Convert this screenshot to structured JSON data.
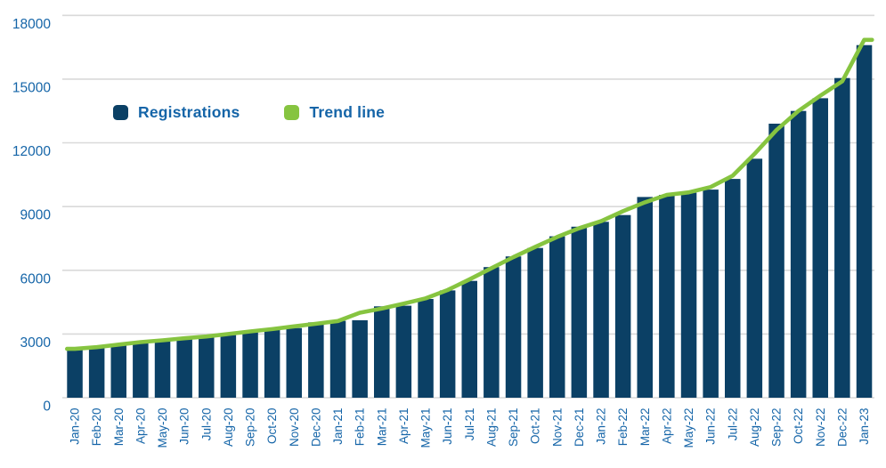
{
  "chart_data": {
    "type": "bar",
    "title": "",
    "xlabel": "",
    "ylabel": "",
    "categories": [
      "Jan-20",
      "Feb-20",
      "Mar-20",
      "Apr-20",
      "May-20",
      "Jun-20",
      "Jul-20",
      "Aug-20",
      "Sep-20",
      "Oct-20",
      "Nov-20",
      "Dec-20",
      "Jan-21",
      "Feb-21",
      "Mar-21",
      "Apr-21",
      "May-21",
      "Jun-21",
      "Jul-21",
      "Aug-21",
      "Sep-21",
      "Oct-21",
      "Nov-21",
      "Dec-21",
      "Jan-22",
      "Feb-22",
      "Mar-22",
      "Apr-22",
      "May-22",
      "Jun-22",
      "Jul-22",
      "Aug-22",
      "Sep-22",
      "Oct-22",
      "Nov-22",
      "Dec-22",
      "Jan-23"
    ],
    "series": [
      {
        "name": "Registrations",
        "type": "bar",
        "color": "#0B4065",
        "values": [
          2250,
          2350,
          2550,
          2600,
          2700,
          2800,
          2900,
          2950,
          3150,
          3250,
          3280,
          3550,
          3620,
          3650,
          4300,
          4330,
          4650,
          5050,
          5500,
          6150,
          6650,
          7050,
          7600,
          8050,
          8280,
          8600,
          9450,
          9550,
          9650,
          9800,
          10300,
          11250,
          12900,
          13500,
          14100,
          15050,
          16600
        ]
      },
      {
        "name": "Trend line",
        "type": "line",
        "color": "#86C440",
        "values": [
          2300,
          2380,
          2500,
          2620,
          2700,
          2800,
          2880,
          3000,
          3120,
          3230,
          3360,
          3480,
          3610,
          4000,
          4200,
          4430,
          4680,
          5070,
          5570,
          6100,
          6620,
          7100,
          7570,
          7980,
          8310,
          8780,
          9200,
          9550,
          9670,
          9920,
          10450,
          11480,
          12600,
          13500,
          14220,
          14900,
          16850
        ]
      }
    ],
    "ylim": [
      0,
      18000
    ],
    "yticks": [
      0,
      3000,
      6000,
      9000,
      12000,
      15000,
      18000
    ],
    "ytick_labels": [
      "0",
      "3000",
      "6000",
      "9000",
      "12000",
      "15000",
      "18000"
    ],
    "grid": true,
    "legend_position": "inside-top-left"
  },
  "colors": {
    "grid": "#D9D9D9",
    "axis_label": "#1565A8",
    "legend_label": "#1565A8",
    "background": "#FFFFFF"
  }
}
